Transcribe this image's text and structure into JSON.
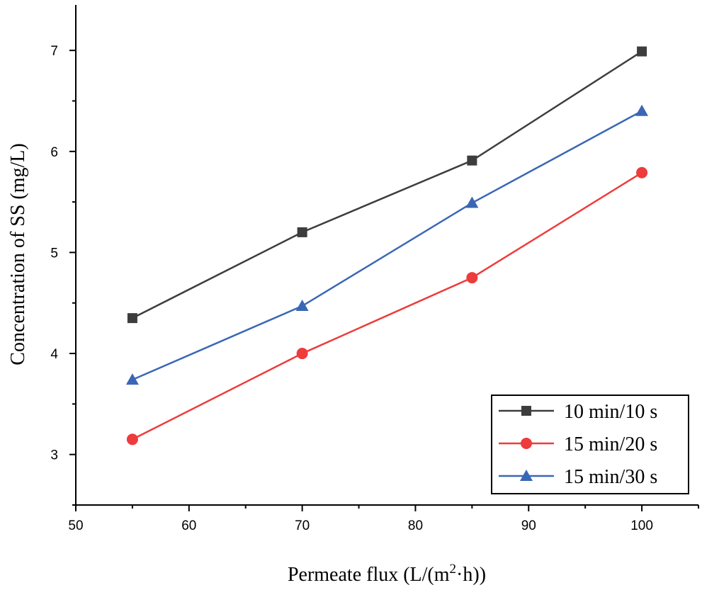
{
  "chart_data": {
    "type": "line",
    "xlabel": "Permeate flux (L/(m²·h))",
    "xlabel_parts": {
      "before": "Permeate flux (L/(m",
      "sup": "2",
      "after": "·h))"
    },
    "ylabel": "Concentration of SS (mg/L)",
    "xlim": [
      50,
      105
    ],
    "ylim": [
      2.5,
      7.45
    ],
    "xticks": [
      50,
      60,
      70,
      80,
      90,
      100
    ],
    "yticks": [
      3,
      4,
      5,
      6,
      7
    ],
    "x": [
      55,
      70,
      85,
      100
    ],
    "grid": false,
    "legend_position": "bottom-right",
    "series": [
      {
        "name": "10 min/10 s",
        "values": [
          4.35,
          5.2,
          5.91,
          6.99
        ],
        "color": "#3d3d3d",
        "marker": "square"
      },
      {
        "name": "15 min/20 s",
        "values": [
          3.15,
          4.0,
          4.75,
          5.79
        ],
        "color": "#ee3b3b",
        "marker": "circle"
      },
      {
        "name": "15 min/30 s",
        "values": [
          3.74,
          4.47,
          5.49,
          6.4
        ],
        "color": "#3a67b5",
        "marker": "triangle"
      }
    ]
  }
}
